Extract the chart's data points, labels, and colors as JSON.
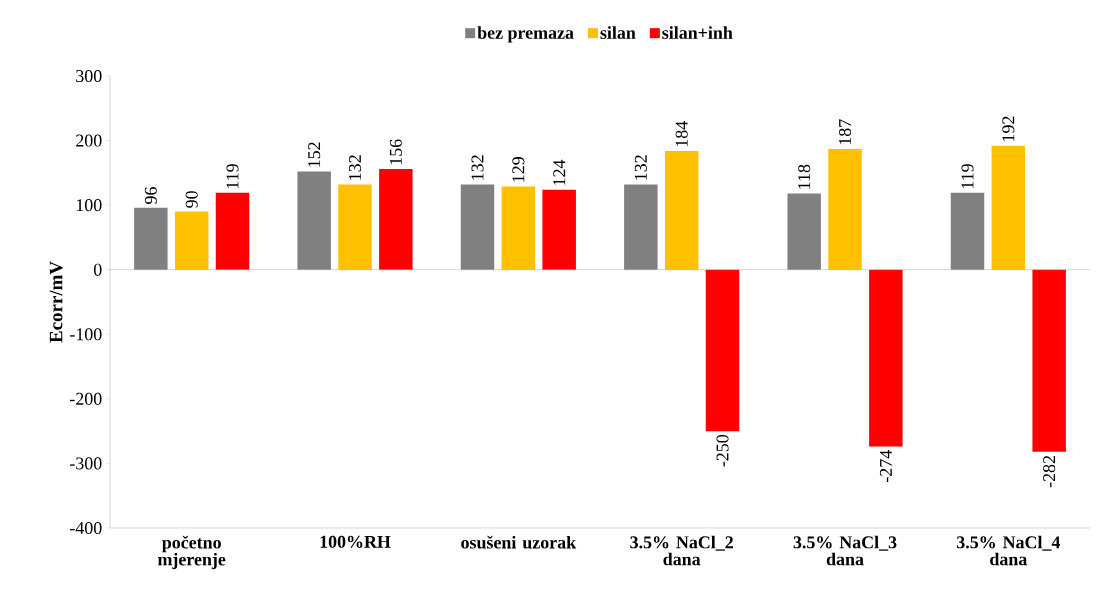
{
  "chart_data": {
    "type": "bar",
    "ylabel": "Ecorr/mV",
    "categories": [
      "početno mjerenje",
      "100%RH",
      "osušeni uzorak",
      "3.5% NaCl_2 dana",
      "3.5% NaCl_3 dana",
      "3.5% NaCl_4 dana"
    ],
    "series": [
      {
        "name": "bez premaza",
        "color": "#808080",
        "values": [
          96,
          152,
          132,
          132,
          118,
          119
        ]
      },
      {
        "name": "silan",
        "color": "#ffc000",
        "values": [
          90,
          132,
          129,
          184,
          187,
          192
        ]
      },
      {
        "name": "silan+inh",
        "color": "#ff0000",
        "values": [
          119,
          156,
          124,
          -250,
          -274,
          -282
        ]
      }
    ],
    "ylim": [
      -400,
      300
    ],
    "yticks": [
      -400,
      -300,
      -200,
      -100,
      0,
      100,
      200,
      300
    ],
    "legend": "top",
    "data_labels": true
  }
}
